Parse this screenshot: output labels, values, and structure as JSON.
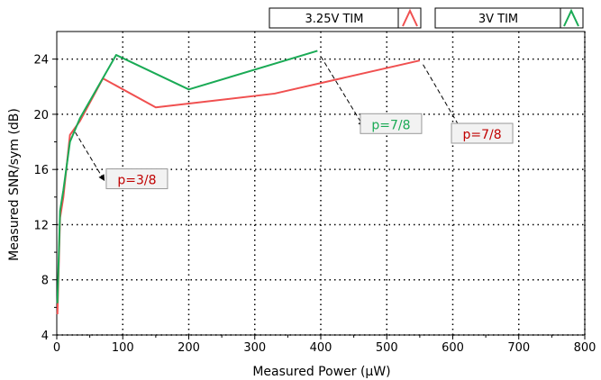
{
  "chart_data": {
    "type": "line",
    "title": "",
    "xlabel": "Measured Power (μW)",
    "ylabel": "Measured SNR/sym (dB)",
    "xlim": [
      0,
      800
    ],
    "ylim": [
      4,
      26
    ],
    "x_ticks": [
      0,
      100,
      200,
      300,
      400,
      500,
      600,
      700,
      800
    ],
    "y_ticks": [
      4,
      8,
      12,
      16,
      20,
      24
    ],
    "grid": true,
    "legend_position": "top-right",
    "series": [
      {
        "name": "3.25V TIM",
        "color": "#f05050",
        "x": [
          1,
          5,
          10,
          20,
          35,
          70,
          150,
          330,
          550
        ],
        "y": [
          5.5,
          12.5,
          14.0,
          18.5,
          19.5,
          22.6,
          20.5,
          21.5,
          23.9
        ]
      },
      {
        "name": "3V TIM",
        "color": "#1aaa55",
        "x": [
          1,
          5,
          10,
          20,
          35,
          90,
          200,
          395
        ],
        "y": [
          6.3,
          13.0,
          14.5,
          18.0,
          19.7,
          24.3,
          21.8,
          24.6
        ]
      }
    ],
    "annotations": [
      {
        "text": "p=3/8",
        "color": "#c00000",
        "from": [
          28,
          18.7
        ],
        "to": [
          72,
          15.2
        ],
        "box": [
          75,
          14.8
        ]
      },
      {
        "text": "p=7/8",
        "color": "#1aaa55",
        "from": [
          400,
          24.2
        ],
        "to": [
          465,
          19.1
        ],
        "box": [
          460,
          18.8
        ]
      },
      {
        "text": "p=7/8",
        "color": "#c00000",
        "from": [
          555,
          23.6
        ],
        "to": [
          620,
          18.3
        ],
        "box": [
          598,
          18.1
        ]
      }
    ]
  }
}
